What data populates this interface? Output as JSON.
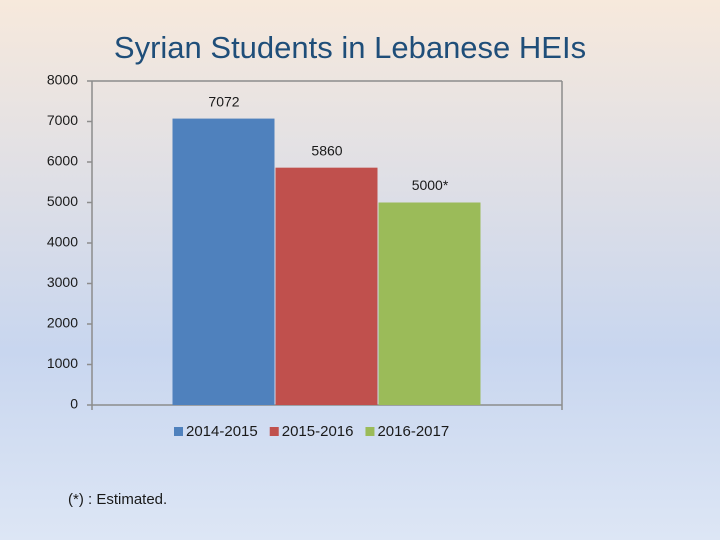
{
  "chart_data": {
    "type": "bar",
    "title": "Syrian Students in Lebanese HEIs",
    "categories": [
      null
    ],
    "series": [
      {
        "name": "2014-2015",
        "color": "#4f81bd",
        "values": [
          7072
        ]
      },
      {
        "name": "2015-2016",
        "color": "#c0504d",
        "values": [
          5860
        ]
      },
      {
        "name": "2016-2017",
        "color": "#9bbb59",
        "values": [
          5000
        ],
        "value_labels": [
          "5000*"
        ]
      }
    ],
    "ylim": [
      0,
      8000
    ],
    "yticks": [
      0,
      1000,
      2000,
      3000,
      4000,
      5000,
      6000,
      7000,
      8000
    ],
    "grid": false,
    "legend": "bottom",
    "annotation": "(*) : Estimated."
  }
}
